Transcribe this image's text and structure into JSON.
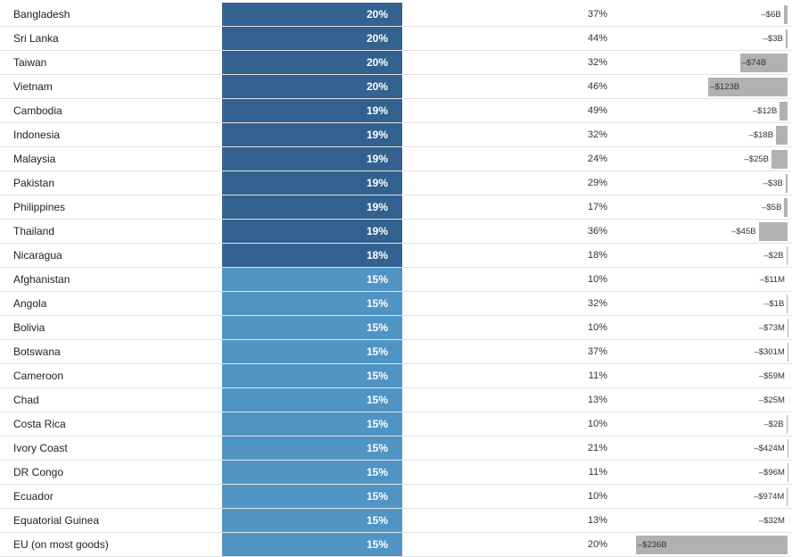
{
  "colors": {
    "high_tier": "#336290",
    "low_tier": "#5094c4",
    "deficit_bar": "#b1b1b1"
  },
  "deficit_scale_max_billion": 236,
  "rows": [
    {
      "country": "Bangladesh",
      "rate": "20%",
      "tier": "high",
      "share": "37%",
      "deficit": "–$6B",
      "deficit_billion": 6
    },
    {
      "country": "Sri Lanka",
      "rate": "20%",
      "tier": "high",
      "share": "44%",
      "deficit": "–$3B",
      "deficit_billion": 3
    },
    {
      "country": "Taiwan",
      "rate": "20%",
      "tier": "high",
      "share": "32%",
      "deficit": "–$74B",
      "deficit_billion": 74
    },
    {
      "country": "Vietnam",
      "rate": "20%",
      "tier": "high",
      "share": "46%",
      "deficit": "–$123B",
      "deficit_billion": 123
    },
    {
      "country": "Cambodia",
      "rate": "19%",
      "tier": "high",
      "share": "49%",
      "deficit": "–$12B",
      "deficit_billion": 12
    },
    {
      "country": "Indonesia",
      "rate": "19%",
      "tier": "high",
      "share": "32%",
      "deficit": "–$18B",
      "deficit_billion": 18
    },
    {
      "country": "Malaysia",
      "rate": "19%",
      "tier": "high",
      "share": "24%",
      "deficit": "–$25B",
      "deficit_billion": 25
    },
    {
      "country": "Pakistan",
      "rate": "19%",
      "tier": "high",
      "share": "29%",
      "deficit": "–$3B",
      "deficit_billion": 3
    },
    {
      "country": "Philippines",
      "rate": "19%",
      "tier": "high",
      "share": "17%",
      "deficit": "–$5B",
      "deficit_billion": 5
    },
    {
      "country": "Thailand",
      "rate": "19%",
      "tier": "high",
      "share": "36%",
      "deficit": "–$45B",
      "deficit_billion": 45
    },
    {
      "country": "Nicaragua",
      "rate": "18%",
      "tier": "high",
      "share": "18%",
      "deficit": "–$2B",
      "deficit_billion": 2
    },
    {
      "country": "Afghanistan",
      "rate": "15%",
      "tier": "low",
      "share": "10%",
      "deficit": "–$11M",
      "deficit_billion": 0.011
    },
    {
      "country": "Angola",
      "rate": "15%",
      "tier": "low",
      "share": "32%",
      "deficit": "–$1B",
      "deficit_billion": 1
    },
    {
      "country": "Bolivia",
      "rate": "15%",
      "tier": "low",
      "share": "10%",
      "deficit": "–$73M",
      "deficit_billion": 0.073
    },
    {
      "country": "Botswana",
      "rate": "15%",
      "tier": "low",
      "share": "37%",
      "deficit": "–$301M",
      "deficit_billion": 0.301
    },
    {
      "country": "Cameroon",
      "rate": "15%",
      "tier": "low",
      "share": "11%",
      "deficit": "–$59M",
      "deficit_billion": 0.059
    },
    {
      "country": "Chad",
      "rate": "15%",
      "tier": "low",
      "share": "13%",
      "deficit": "–$25M",
      "deficit_billion": 0.025
    },
    {
      "country": "Costa Rica",
      "rate": "15%",
      "tier": "low",
      "share": "10%",
      "deficit": "–$2B",
      "deficit_billion": 2
    },
    {
      "country": "Ivory Coast",
      "rate": "15%",
      "tier": "low",
      "share": "21%",
      "deficit": "–$424M",
      "deficit_billion": 0.424
    },
    {
      "country": "DR Congo",
      "rate": "15%",
      "tier": "low",
      "share": "11%",
      "deficit": "–$96M",
      "deficit_billion": 0.096
    },
    {
      "country": "Ecuador",
      "rate": "15%",
      "tier": "low",
      "share": "10%",
      "deficit": "–$974M",
      "deficit_billion": 0.974
    },
    {
      "country": "Equatorial Guinea",
      "rate": "15%",
      "tier": "low",
      "share": "13%",
      "deficit": "–$32M",
      "deficit_billion": 0.032
    },
    {
      "country": "EU (on most goods)",
      "rate": "15%",
      "tier": "low",
      "share": "20%",
      "deficit": "–$236B",
      "deficit_billion": 236
    }
  ]
}
